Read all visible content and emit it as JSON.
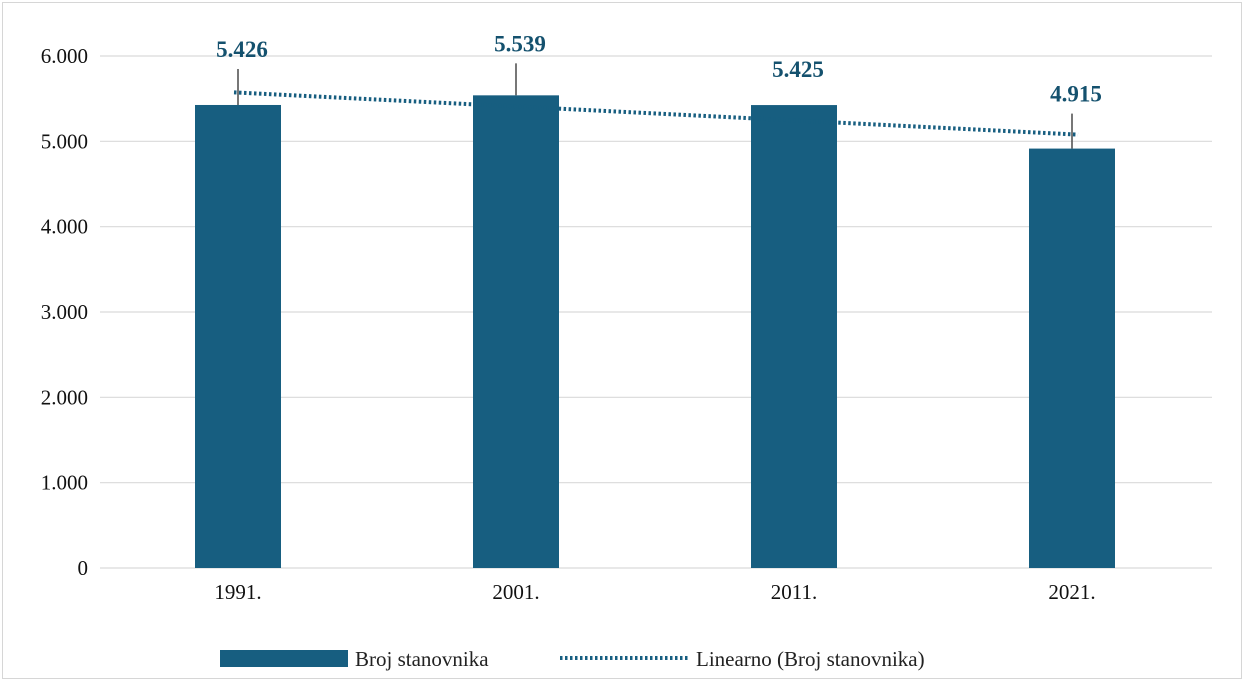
{
  "chart_data": {
    "type": "bar",
    "categories": [
      "1991.",
      "2001.",
      "2011.",
      "2021."
    ],
    "series": [
      {
        "name": "Broj stanovnika",
        "values": [
          5426,
          5539,
          5425,
          4915
        ],
        "labels": [
          "5.426",
          "5.539",
          "5.425",
          "4.915"
        ],
        "color": "#175e80"
      }
    ],
    "trendline": {
      "name": "Linearno (Broj stanovnika)",
      "style": "dotted",
      "color": "#175e80"
    },
    "yticks": [
      "0",
      "1.000",
      "2.000",
      "3.000",
      "4.000",
      "5.000",
      "6.000"
    ],
    "ylim": [
      0,
      6000
    ],
    "grid": true,
    "legend_position": "bottom",
    "title": "",
    "xlabel": "",
    "ylabel": ""
  }
}
